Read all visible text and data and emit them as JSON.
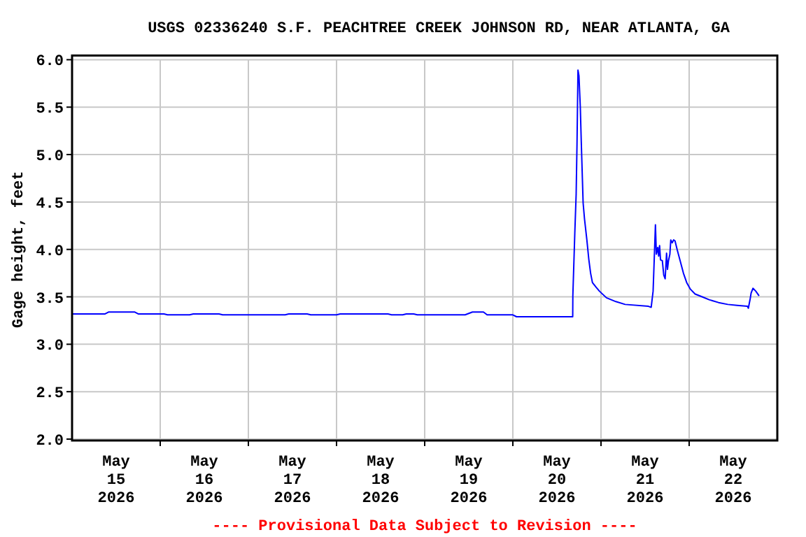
{
  "chart_data": {
    "type": "line",
    "title": "USGS 02336240 S.F. PEACHTREE CREEK JOHNSON RD, NEAR ATLANTA, GA",
    "ylabel": "Gage height, feet",
    "annotations": [
      "---- Provisional Data Subject to Revision ----"
    ],
    "xlim": [
      "2026-05-15T00:00",
      "2026-05-23T00:00"
    ],
    "xticks": [
      {
        "value": "2026-05-15T12:00",
        "label": "May\n15\n2026"
      },
      {
        "value": "2026-05-16T00:00",
        "label": null
      },
      {
        "value": "2026-05-16T12:00",
        "label": "May\n16\n2026"
      },
      {
        "value": "2026-05-17T00:00",
        "label": null
      },
      {
        "value": "2026-05-17T12:00",
        "label": "May\n17\n2026"
      },
      {
        "value": "2026-05-18T00:00",
        "label": null
      },
      {
        "value": "2026-05-18T12:00",
        "label": "May\n18\n2026"
      },
      {
        "value": "2026-05-19T00:00",
        "label": null
      },
      {
        "value": "2026-05-19T12:00",
        "label": "May\n19\n2026"
      },
      {
        "value": "2026-05-20T00:00",
        "label": null
      },
      {
        "value": "2026-05-20T12:00",
        "label": "May\n20\n2026"
      },
      {
        "value": "2026-05-21T00:00",
        "label": null
      },
      {
        "value": "2026-05-21T12:00",
        "label": "May\n21\n2026"
      },
      {
        "value": "2026-05-22T00:00",
        "label": null
      },
      {
        "value": "2026-05-22T12:00",
        "label": "May\n22\n2026"
      }
    ],
    "ylim": [
      2,
      6
    ],
    "yticks": [
      {
        "value": 2,
        "label": "2.0"
      },
      2.5,
      {
        "value": 3,
        "label": "3.0"
      },
      3.5,
      {
        "value": 4,
        "label": "4.0"
      },
      4.5,
      {
        "value": 5,
        "label": "5.0"
      },
      5.5,
      {
        "value": 6,
        "label": "6.0"
      }
    ],
    "grid": true,
    "series": [
      {
        "color": "#0000ff",
        "x": [
          "2026-05-15T00:00",
          "2026-05-15T09:00",
          "2026-05-15T10:00",
          "2026-05-15T17:00",
          "2026-05-15T18:00",
          "2026-05-16T01:00",
          "2026-05-16T02:00",
          "2026-05-16T08:00",
          "2026-05-16T09:00",
          "2026-05-16T16:00",
          "2026-05-16T17:00",
          "2026-05-17T10:00",
          "2026-05-17T11:00",
          "2026-05-17T16:00",
          "2026-05-17T17:00",
          "2026-05-18T00:00",
          "2026-05-18T01:00",
          "2026-05-18T14:00",
          "2026-05-18T15:00",
          "2026-05-18T18:00",
          "2026-05-18T19:00",
          "2026-05-18T21:00",
          "2026-05-18T22:00",
          "2026-05-19T11:00",
          "2026-05-19T13:00",
          "2026-05-19T16:00",
          "2026-05-19T17:00",
          "2026-05-20T00:00",
          "2026-05-20T01:00",
          "2026-05-20T16:18",
          "2026-05-20T16:20",
          "2026-05-20T16:52",
          "2026-05-20T17:14",
          "2026-05-20T17:28",
          "2026-05-20T17:44",
          "2026-05-20T18:00",
          "2026-05-20T18:22",
          "2026-05-20T18:38",
          "2026-05-20T19:08",
          "2026-05-20T19:31",
          "2026-05-20T20:09",
          "2026-05-20T20:40",
          "2026-05-20T21:10",
          "2026-05-20T21:40",
          "2026-05-20T22:41",
          "2026-05-20T23:34",
          "2026-05-21T01:29",
          "2026-05-21T04:02",
          "2026-05-21T06:34",
          "2026-05-21T12:55",
          "2026-05-21T13:40",
          "2026-05-21T14:11",
          "2026-05-21T14:34",
          "2026-05-21T14:49",
          "2026-05-21T15:04",
          "2026-05-21T15:27",
          "2026-05-21T15:42",
          "2026-05-21T15:57",
          "2026-05-21T16:12",
          "2026-05-21T16:42",
          "2026-05-21T17:05",
          "2026-05-21T17:28",
          "2026-05-21T17:51",
          "2026-05-21T18:06",
          "2026-05-21T18:22",
          "2026-05-21T18:45",
          "2026-05-21T19:00",
          "2026-05-21T19:23",
          "2026-05-21T19:46",
          "2026-05-21T20:09",
          "2026-05-21T20:47",
          "2026-05-21T21:33",
          "2026-05-21T22:26",
          "2026-05-21T23:20",
          "2026-05-22T00:21",
          "2026-05-22T01:37",
          "2026-05-22T03:32",
          "2026-05-22T05:26",
          "2026-05-22T07:59",
          "2026-05-22T10:31",
          "2026-05-22T13:04",
          "2026-05-22T15:52",
          "2026-05-22T16:07",
          "2026-05-22T16:37",
          "2026-05-22T16:52",
          "2026-05-22T17:22",
          "2026-05-22T18:08",
          "2026-05-22T19:02"
        ],
        "values": [
          3.32,
          3.32,
          3.34,
          3.34,
          3.32,
          3.32,
          3.31,
          3.31,
          3.32,
          3.32,
          3.31,
          3.31,
          3.32,
          3.32,
          3.31,
          3.31,
          3.32,
          3.32,
          3.31,
          3.31,
          3.32,
          3.32,
          3.31,
          3.31,
          3.34,
          3.34,
          3.31,
          3.31,
          3.29,
          3.29,
          3.51,
          4.17,
          4.58,
          5.11,
          5.89,
          5.83,
          5.5,
          5.13,
          4.49,
          4.32,
          4.1,
          3.9,
          3.75,
          3.65,
          3.6,
          3.56,
          3.49,
          3.45,
          3.42,
          3.4,
          3.39,
          3.56,
          3.98,
          4.26,
          3.95,
          4.02,
          3.93,
          4.04,
          3.89,
          3.88,
          3.73,
          3.69,
          3.96,
          3.79,
          3.88,
          3.95,
          4.1,
          4.07,
          4.1,
          4.09,
          3.99,
          3.88,
          3.75,
          3.65,
          3.58,
          3.53,
          3.5,
          3.47,
          3.44,
          3.42,
          3.41,
          3.4,
          3.38,
          3.48,
          3.54,
          3.59,
          3.56,
          3.51
        ]
      }
    ]
  }
}
